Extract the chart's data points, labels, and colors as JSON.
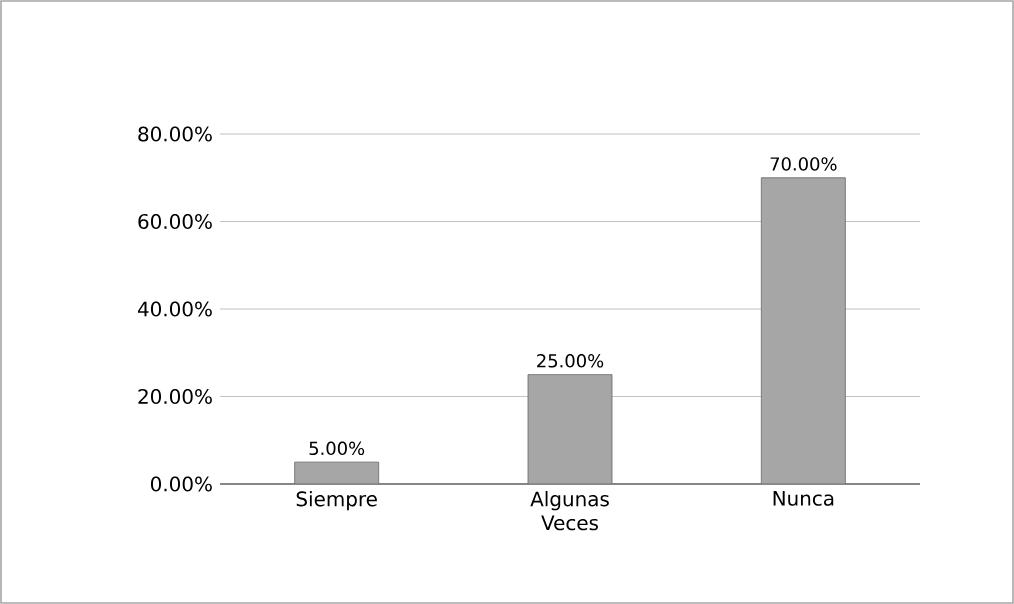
{
  "chart_data": {
    "type": "bar",
    "categories": [
      "Siempre",
      "Algunas Veces",
      "Nunca"
    ],
    "values": [
      5,
      25,
      70
    ],
    "value_labels": [
      "5.00%",
      "25.00%",
      "70.00%"
    ],
    "color": "#a6a6a6",
    "ylim": [
      0,
      80
    ],
    "yticks": [
      {
        "value": 0,
        "label": "0.00%"
      },
      {
        "value": 20,
        "label": "20.00%"
      },
      {
        "value": 40,
        "label": "40.00%"
      },
      {
        "value": 60,
        "label": "60.00%"
      },
      {
        "value": 80,
        "label": "80.00%"
      }
    ],
    "grid": "y"
  }
}
